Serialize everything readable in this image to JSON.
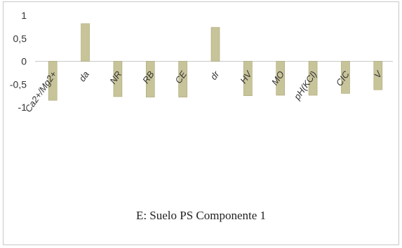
{
  "chart_data": {
    "type": "bar",
    "categories": [
      "Ca2+/Mg2+",
      "da",
      "NR",
      "RB",
      "CE",
      "dr",
      "HV",
      "MO",
      "pH(KCl)",
      "CIC",
      "V"
    ],
    "values": [
      -0.85,
      0.82,
      -0.77,
      -0.78,
      -0.78,
      0.74,
      -0.75,
      -0.74,
      -0.74,
      -0.7,
      -0.62
    ],
    "ylim": [
      -1,
      1
    ],
    "yticks": [
      "-1",
      "-0,5",
      "0",
      "0,5",
      "1"
    ],
    "grid": false,
    "bar_color": "#c8c49a",
    "bar_edge": "#a8a472",
    "title": "E: Suelo PS Componente 1"
  }
}
